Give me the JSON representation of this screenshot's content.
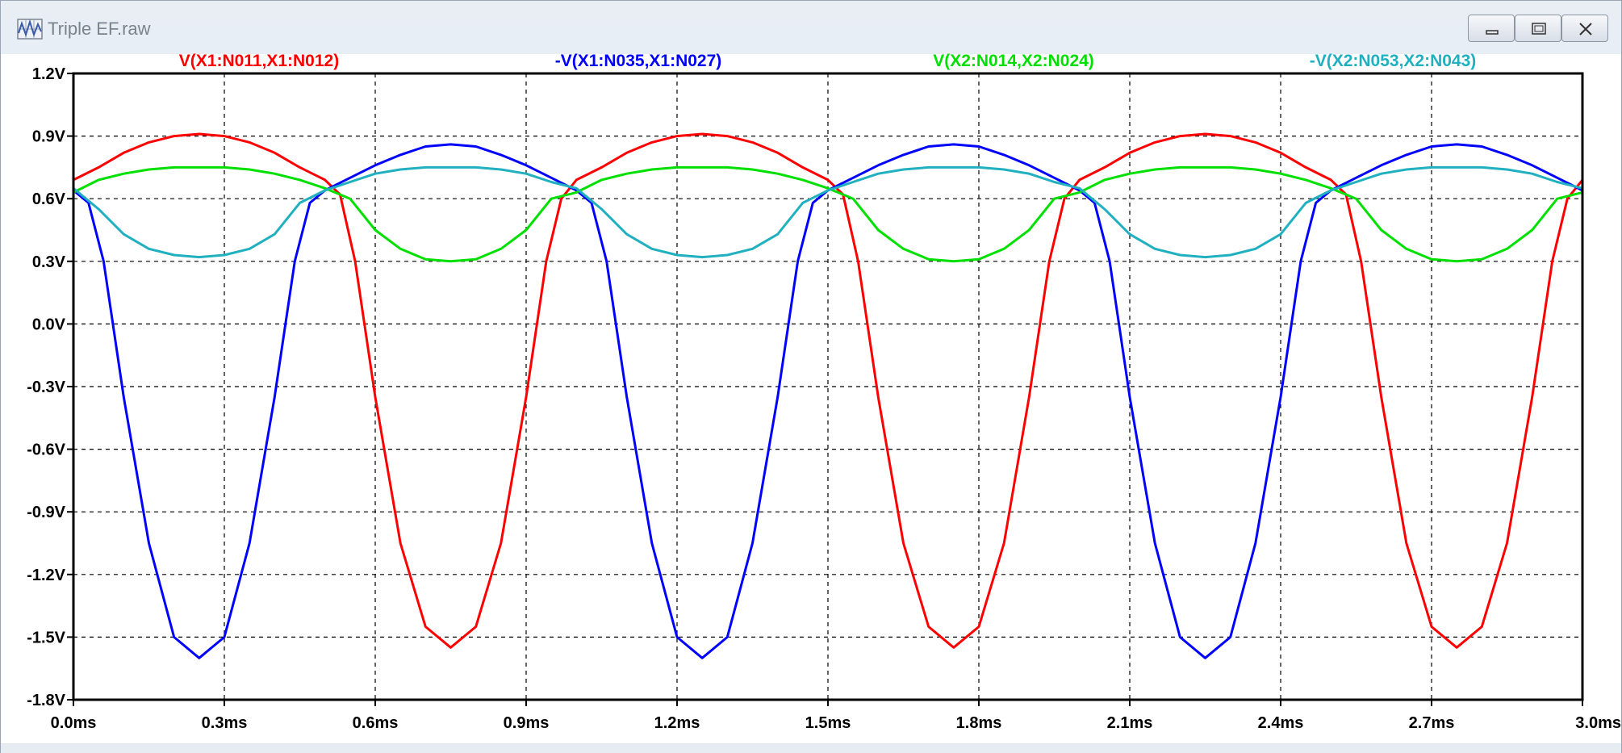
{
  "window": {
    "title": "Triple EF.raw",
    "controls": {
      "minimize_icon": "minimize-icon",
      "maximize_icon": "maximize-icon",
      "close_icon": "close-icon"
    }
  },
  "chart_data": {
    "type": "line",
    "title": "",
    "xlabel": "",
    "ylabel": "",
    "xlim": [
      0.0,
      3.0
    ],
    "ylim": [
      -1.8,
      1.2
    ],
    "x_unit": "ms",
    "y_unit": "V",
    "grid": true,
    "legend_placement": "top",
    "x_ticks": [
      "0.0ms",
      "0.3ms",
      "0.6ms",
      "0.9ms",
      "1.2ms",
      "1.5ms",
      "1.8ms",
      "2.1ms",
      "2.4ms",
      "2.7ms",
      "3.0ms"
    ],
    "y_ticks": [
      "1.2V",
      "0.9V",
      "0.6V",
      "0.3V",
      "0.0V",
      "-0.3V",
      "-0.6V",
      "-0.9V",
      "-1.2V",
      "-1.5V",
      "-1.8V"
    ],
    "series": [
      {
        "name": "V(X1:N011,X1:N012)",
        "color": "#ff0000",
        "x": [
          0,
          0.05,
          0.1,
          0.15,
          0.2,
          0.25,
          0.3,
          0.35,
          0.4,
          0.45,
          0.5,
          0.53,
          0.56,
          0.6,
          0.65,
          0.7,
          0.75,
          0.8,
          0.85,
          0.9,
          0.94,
          0.97,
          1.0,
          1.05,
          1.1,
          1.15,
          1.2,
          1.25,
          1.3,
          1.35,
          1.4,
          1.45,
          1.5,
          1.53,
          1.56,
          1.6,
          1.65,
          1.7,
          1.75,
          1.8,
          1.85,
          1.9,
          1.94,
          1.97,
          2.0,
          2.05,
          2.1,
          2.15,
          2.2,
          2.25,
          2.3,
          2.35,
          2.4,
          2.45,
          2.5,
          2.53,
          2.56,
          2.6,
          2.65,
          2.7,
          2.75,
          2.8,
          2.85,
          2.9,
          2.94,
          2.97,
          3.0
        ],
        "values": [
          0.69,
          0.75,
          0.82,
          0.87,
          0.9,
          0.91,
          0.9,
          0.87,
          0.82,
          0.75,
          0.69,
          0.62,
          0.3,
          -0.35,
          -1.05,
          -1.45,
          -1.55,
          -1.45,
          -1.05,
          -0.35,
          0.3,
          0.6,
          0.69,
          0.75,
          0.82,
          0.87,
          0.9,
          0.91,
          0.9,
          0.87,
          0.82,
          0.75,
          0.69,
          0.62,
          0.3,
          -0.35,
          -1.05,
          -1.45,
          -1.55,
          -1.45,
          -1.05,
          -0.35,
          0.3,
          0.6,
          0.69,
          0.75,
          0.82,
          0.87,
          0.9,
          0.91,
          0.9,
          0.87,
          0.82,
          0.75,
          0.69,
          0.62,
          0.3,
          -0.35,
          -1.05,
          -1.45,
          -1.55,
          -1.45,
          -1.05,
          -0.35,
          0.3,
          0.6,
          0.69
        ]
      },
      {
        "name": "-V(X1:N035,X1:N027)",
        "color": "#0000ff",
        "x": [
          0,
          0.03,
          0.06,
          0.1,
          0.15,
          0.2,
          0.25,
          0.3,
          0.35,
          0.4,
          0.44,
          0.47,
          0.5,
          0.55,
          0.6,
          0.65,
          0.7,
          0.75,
          0.8,
          0.85,
          0.9,
          0.95,
          1.0,
          1.03,
          1.06,
          1.1,
          1.15,
          1.2,
          1.25,
          1.3,
          1.35,
          1.4,
          1.44,
          1.47,
          1.5,
          1.55,
          1.6,
          1.65,
          1.7,
          1.75,
          1.8,
          1.85,
          1.9,
          1.95,
          2.0,
          2.03,
          2.06,
          2.1,
          2.15,
          2.2,
          2.25,
          2.3,
          2.35,
          2.4,
          2.44,
          2.47,
          2.5,
          2.55,
          2.6,
          2.65,
          2.7,
          2.75,
          2.8,
          2.85,
          2.9,
          2.95,
          3.0
        ],
        "values": [
          0.64,
          0.58,
          0.3,
          -0.35,
          -1.05,
          -1.5,
          -1.6,
          -1.5,
          -1.05,
          -0.35,
          0.3,
          0.58,
          0.64,
          0.7,
          0.76,
          0.81,
          0.85,
          0.86,
          0.85,
          0.81,
          0.76,
          0.7,
          0.64,
          0.58,
          0.3,
          -0.35,
          -1.05,
          -1.5,
          -1.6,
          -1.5,
          -1.05,
          -0.35,
          0.3,
          0.58,
          0.64,
          0.7,
          0.76,
          0.81,
          0.85,
          0.86,
          0.85,
          0.81,
          0.76,
          0.7,
          0.64,
          0.58,
          0.3,
          -0.35,
          -1.05,
          -1.5,
          -1.6,
          -1.5,
          -1.05,
          -0.35,
          0.3,
          0.58,
          0.64,
          0.7,
          0.76,
          0.81,
          0.85,
          0.86,
          0.85,
          0.81,
          0.76,
          0.7,
          0.64
        ]
      },
      {
        "name": "V(X2:N014,X2:N024)",
        "color": "#00e000",
        "x": [
          0,
          0.05,
          0.1,
          0.15,
          0.2,
          0.25,
          0.3,
          0.35,
          0.4,
          0.45,
          0.5,
          0.55,
          0.6,
          0.65,
          0.7,
          0.75,
          0.8,
          0.85,
          0.9,
          0.95,
          1.0,
          1.05,
          1.1,
          1.15,
          1.2,
          1.25,
          1.3,
          1.35,
          1.4,
          1.45,
          1.5,
          1.55,
          1.6,
          1.65,
          1.7,
          1.75,
          1.8,
          1.85,
          1.9,
          1.95,
          2.0,
          2.05,
          2.1,
          2.15,
          2.2,
          2.25,
          2.3,
          2.35,
          2.4,
          2.45,
          2.5,
          2.55,
          2.6,
          2.65,
          2.7,
          2.75,
          2.8,
          2.85,
          2.9,
          2.95,
          3.0
        ],
        "values": [
          0.63,
          0.69,
          0.72,
          0.74,
          0.75,
          0.75,
          0.75,
          0.74,
          0.72,
          0.69,
          0.65,
          0.6,
          0.45,
          0.36,
          0.31,
          0.3,
          0.31,
          0.36,
          0.45,
          0.6,
          0.63,
          0.69,
          0.72,
          0.74,
          0.75,
          0.75,
          0.75,
          0.74,
          0.72,
          0.69,
          0.65,
          0.6,
          0.45,
          0.36,
          0.31,
          0.3,
          0.31,
          0.36,
          0.45,
          0.6,
          0.63,
          0.69,
          0.72,
          0.74,
          0.75,
          0.75,
          0.75,
          0.74,
          0.72,
          0.69,
          0.65,
          0.6,
          0.45,
          0.36,
          0.31,
          0.3,
          0.31,
          0.36,
          0.45,
          0.6,
          0.63
        ]
      },
      {
        "name": "-V(X2:N053,X2:N043)",
        "color": "#20b0c0",
        "x": [
          0,
          0.05,
          0.1,
          0.15,
          0.2,
          0.25,
          0.3,
          0.35,
          0.4,
          0.45,
          0.5,
          0.55,
          0.6,
          0.65,
          0.7,
          0.75,
          0.8,
          0.85,
          0.9,
          0.95,
          1.0,
          1.05,
          1.1,
          1.15,
          1.2,
          1.25,
          1.3,
          1.35,
          1.4,
          1.45,
          1.5,
          1.55,
          1.6,
          1.65,
          1.7,
          1.75,
          1.8,
          1.85,
          1.9,
          1.95,
          2.0,
          2.05,
          2.1,
          2.15,
          2.2,
          2.25,
          2.3,
          2.35,
          2.4,
          2.45,
          2.5,
          2.55,
          2.6,
          2.65,
          2.7,
          2.75,
          2.8,
          2.85,
          2.9,
          2.95,
          3.0
        ],
        "values": [
          0.65,
          0.55,
          0.43,
          0.36,
          0.33,
          0.32,
          0.33,
          0.36,
          0.43,
          0.58,
          0.64,
          0.68,
          0.72,
          0.74,
          0.75,
          0.75,
          0.75,
          0.74,
          0.72,
          0.68,
          0.65,
          0.55,
          0.43,
          0.36,
          0.33,
          0.32,
          0.33,
          0.36,
          0.43,
          0.58,
          0.64,
          0.68,
          0.72,
          0.74,
          0.75,
          0.75,
          0.75,
          0.74,
          0.72,
          0.68,
          0.65,
          0.55,
          0.43,
          0.36,
          0.33,
          0.32,
          0.33,
          0.36,
          0.43,
          0.58,
          0.64,
          0.68,
          0.72,
          0.74,
          0.75,
          0.75,
          0.75,
          0.74,
          0.72,
          0.68,
          0.65
        ]
      }
    ]
  }
}
